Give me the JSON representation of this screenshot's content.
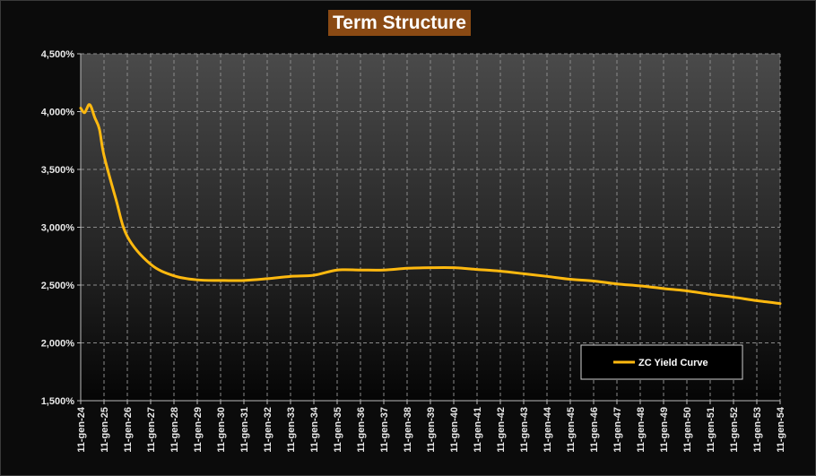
{
  "chart_data": {
    "type": "line",
    "title": "Term Structure",
    "xlabel": "",
    "ylabel": "",
    "x_ticks": [
      "11-gen-24",
      "11-gen-25",
      "11-gen-26",
      "11-gen-27",
      "11-gen-28",
      "11-gen-29",
      "11-gen-30",
      "11-gen-31",
      "11-gen-32",
      "11-gen-33",
      "11-gen-34",
      "11-gen-35",
      "11-gen-36",
      "11-gen-37",
      "11-gen-38",
      "11-gen-39",
      "11-gen-40",
      "11-gen-41",
      "11-gen-42",
      "11-gen-43",
      "11-gen-44",
      "11-gen-45",
      "11-gen-46",
      "11-gen-47",
      "11-gen-48",
      "11-gen-49",
      "11-gen-50",
      "11-gen-51",
      "11-gen-52",
      "11-gen-53",
      "11-gen-54"
    ],
    "y_ticks": [
      "1,500%",
      "2,000%",
      "2,500%",
      "3,000%",
      "3,500%",
      "4,000%",
      "4,500%"
    ],
    "ylim": [
      1.5,
      4.5
    ],
    "xlim": [
      2024,
      2054
    ],
    "grid": true,
    "legend_position": "bottom-right",
    "series": [
      {
        "name": "ZC Yield Curve",
        "color": "#ffb90f",
        "x": [
          2024.0,
          2024.15,
          2024.25,
          2024.35,
          2024.45,
          2024.6,
          2024.8,
          2025.0,
          2025.5,
          2026.0,
          2027.0,
          2028.0,
          2029.0,
          2030.0,
          2031.0,
          2032.0,
          2033.0,
          2034.0,
          2035.0,
          2036.0,
          2037.0,
          2038.0,
          2039.0,
          2040.0,
          2041.0,
          2042.0,
          2043.0,
          2044.0,
          2045.0,
          2046.0,
          2047.0,
          2048.0,
          2049.0,
          2050.0,
          2051.0,
          2052.0,
          2053.0,
          2054.0
        ],
        "y": [
          4.03,
          3.99,
          4.02,
          4.06,
          4.04,
          3.95,
          3.85,
          3.62,
          3.25,
          2.92,
          2.68,
          2.58,
          2.545,
          2.54,
          2.54,
          2.555,
          2.575,
          2.585,
          2.63,
          2.63,
          2.63,
          2.645,
          2.65,
          2.65,
          2.635,
          2.62,
          2.598,
          2.575,
          2.55,
          2.535,
          2.51,
          2.493,
          2.47,
          2.45,
          2.42,
          2.395,
          2.365,
          2.34
        ]
      }
    ]
  }
}
